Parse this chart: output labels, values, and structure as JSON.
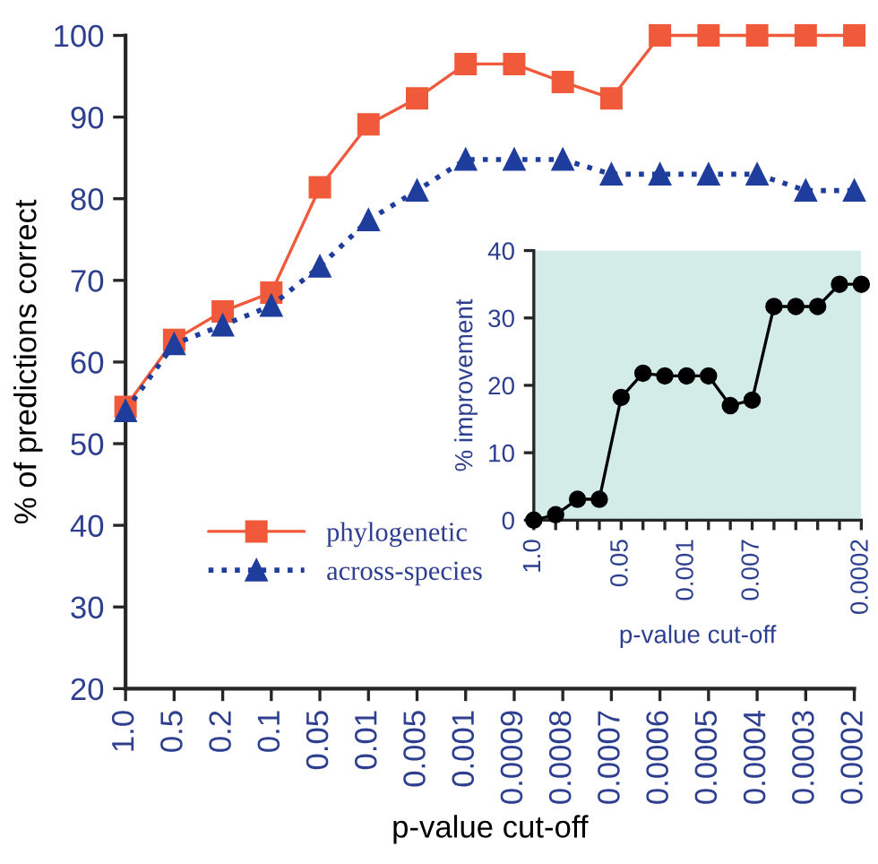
{
  "chart_data": [
    {
      "type": "line",
      "xlabel": "p-value cut-off",
      "ylabel": "% of predictions correct",
      "categories": [
        "1.0",
        "0.5",
        "0.2",
        "0.1",
        "0.05",
        "0.01",
        "0.005",
        "0.001",
        "0.0009",
        "0.0008",
        "0.0007",
        "0.0006",
        "0.0005",
        "0.0004",
        "0.0003",
        "0.0002"
      ],
      "series": [
        {
          "name": "phylogenetic",
          "color": "#f05a3a",
          "marker": "square",
          "line_style": "solid",
          "values": [
            54.5,
            62.7,
            66.2,
            68.5,
            81.4,
            89.1,
            92.3,
            96.5,
            96.5,
            94.3,
            92.3,
            100,
            100,
            100,
            100,
            100
          ]
        },
        {
          "name": "across-species",
          "color": "#1f3d9c",
          "marker": "triangle",
          "line_style": "dotted",
          "values": [
            54,
            62.2,
            64.5,
            66.9,
            71.7,
            77.4,
            81,
            84.8,
            84.8,
            84.8,
            83,
            83,
            83,
            83,
            81,
            81
          ]
        }
      ],
      "ylim": [
        20,
        100
      ],
      "yticks": [
        20,
        30,
        40,
        50,
        60,
        70,
        80,
        90,
        100
      ],
      "grid": false,
      "legend": "bottom left"
    },
    {
      "type": "line",
      "xlabel": "p-value cut-off",
      "ylabel": "% improvement",
      "categories": [
        "1.0",
        null,
        null,
        null,
        "0.05",
        null,
        null,
        "0.001",
        null,
        null,
        "0.007",
        null,
        null,
        null,
        null,
        "0.0002"
      ],
      "series": [
        {
          "color": "#000000",
          "marker": "circle",
          "line_style": "solid",
          "values": [
            0,
            0.8,
            3.1,
            3.1,
            18.2,
            21.8,
            21.4,
            21.4,
            21.4,
            17,
            17.8,
            31.7,
            31.7,
            31.7,
            35,
            35
          ]
        }
      ],
      "ylim": [
        0,
        40
      ],
      "yticks": [
        0,
        10,
        20,
        30,
        40
      ],
      "grid": false,
      "legend": false,
      "bands": [
        {
          "axis": "y",
          "from": 0,
          "to": 40,
          "color": "#d4ece8"
        }
      ]
    }
  ]
}
